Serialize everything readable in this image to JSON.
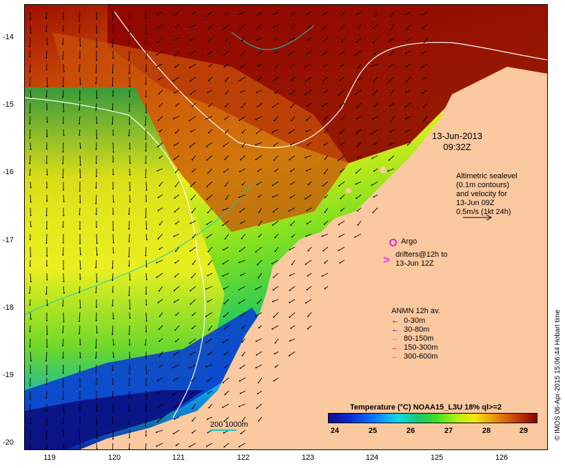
{
  "map": {
    "timestamp_date": "13-Jun-2013",
    "timestamp_time": "09:32Z",
    "altimetry_lines": [
      "Altimetric sealevel",
      "(0.1m contours)",
      "and velocity for",
      "13-Jun 09Z",
      "0.5m/s (1kt 24h)"
    ],
    "argo_label": "Argo",
    "drifter_label_1": "drifters@12h to",
    "drifter_label_2": "13-Jun 12Z",
    "scale_label": "200  1000m",
    "credit": "© IMOS 06-Apr-2015 15:06:44 Hobart time"
  },
  "axes": {
    "lat_labels": [
      "-14",
      "-15",
      "-16",
      "-17",
      "-18",
      "-19",
      "-20"
    ],
    "lon_labels": [
      "119",
      "120",
      "121",
      "122",
      "123",
      "124",
      "125",
      "126"
    ]
  },
  "anmn_legend": {
    "title": "ANMN 12h av.",
    "items": [
      {
        "label": "0-30m",
        "color": "#000000"
      },
      {
        "label": "30-80m",
        "color": "#0000ff"
      },
      {
        "label": "80-150m",
        "color": "#00c8c8"
      },
      {
        "label": "150-300m",
        "color": "#ff0000"
      },
      {
        "label": "300-600m",
        "color": "#ff00ff"
      }
    ]
  },
  "colorbar": {
    "title": "Temperature (°C) NOAA15_L3U 18% ql>=2",
    "ticks": [
      "24",
      "25",
      "26",
      "27",
      "28",
      "29"
    ]
  },
  "colors": {
    "land": "#fbc9a0",
    "sst_hot": "#8e0500",
    "sst_warm": "#e07a10",
    "sst_mid": "#f0e010",
    "sst_cool": "#5ae030",
    "sst_cold": "#0a30c8",
    "contour": "#ffffff",
    "isobath": "#10c8c8"
  }
}
